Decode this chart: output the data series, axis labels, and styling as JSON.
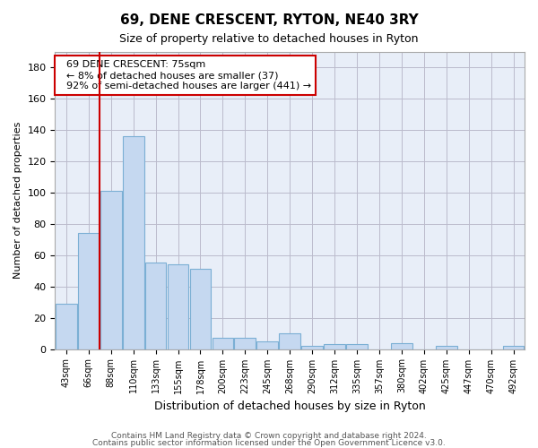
{
  "title": "69, DENE CRESCENT, RYTON, NE40 3RY",
  "subtitle": "Size of property relative to detached houses in Ryton",
  "xlabel": "Distribution of detached houses by size in Ryton",
  "ylabel": "Number of detached properties",
  "bar_color": "#c5d8f0",
  "bar_edge_color": "#7bafd4",
  "background_color": "#e8eef8",
  "grid_color": "#bbbbcc",
  "categories": [
    "43sqm",
    "66sqm",
    "88sqm",
    "110sqm",
    "133sqm",
    "155sqm",
    "178sqm",
    "200sqm",
    "223sqm",
    "245sqm",
    "268sqm",
    "290sqm",
    "312sqm",
    "335sqm",
    "357sqm",
    "380sqm",
    "402sqm",
    "425sqm",
    "447sqm",
    "470sqm",
    "492sqm"
  ],
  "values": [
    29,
    74,
    101,
    136,
    55,
    54,
    51,
    7,
    7,
    5,
    10,
    2,
    3,
    3,
    0,
    4,
    0,
    2,
    0,
    0,
    2
  ],
  "ylim": [
    0,
    190
  ],
  "yticks": [
    0,
    20,
    40,
    60,
    80,
    100,
    120,
    140,
    160,
    180
  ],
  "property_line_x": 1.5,
  "annotation_text": "  69 DENE CRESCENT: 75sqm\n  ← 8% of detached houses are smaller (37)\n  92% of semi-detached houses are larger (441) →",
  "annotation_box_color": "#ffffff",
  "annotation_border_color": "#cc0000",
  "footer_line1": "Contains HM Land Registry data © Crown copyright and database right 2024.",
  "footer_line2": "Contains public sector information licensed under the Open Government Licence v3.0."
}
